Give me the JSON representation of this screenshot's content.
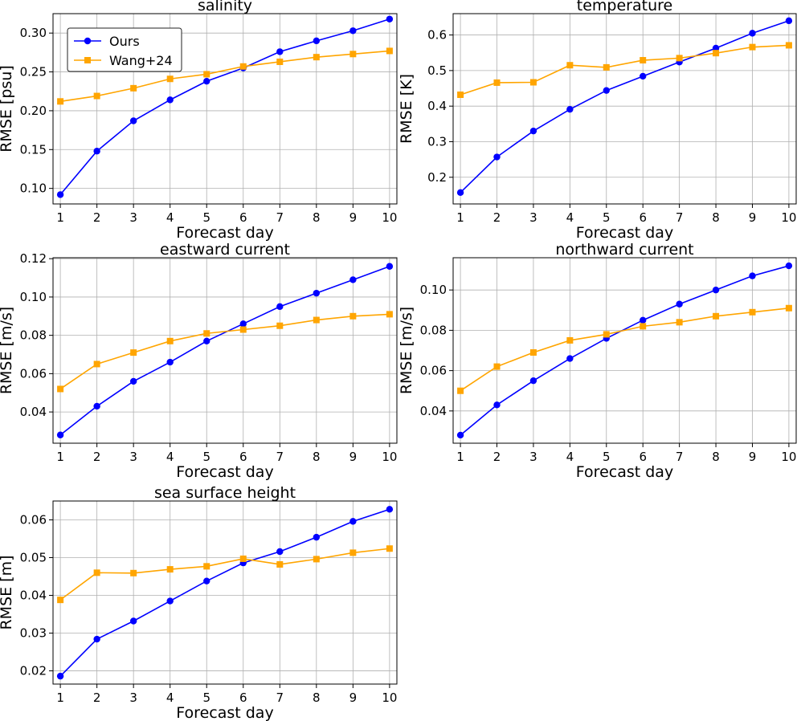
{
  "chart_data": [
    {
      "type": "line",
      "title": "salinity",
      "xlabel": "Forecast day",
      "ylabel": "RMSE [psu]",
      "x": [
        1,
        2,
        3,
        4,
        5,
        6,
        7,
        8,
        9,
        10
      ],
      "xlim": [
        0.8,
        10.2
      ],
      "ylim": [
        0.08,
        0.325
      ],
      "yticks": [
        0.1,
        0.15,
        0.2,
        0.25,
        0.3
      ],
      "ytick_labels": [
        "0.10",
        "0.15",
        "0.20",
        "0.25",
        "0.30"
      ],
      "grid": true,
      "legend": "top-left",
      "series": [
        {
          "name": "Ours",
          "color": "#0000ff",
          "marker": "circle",
          "values": [
            0.092,
            0.148,
            0.187,
            0.214,
            0.238,
            0.255,
            0.276,
            0.29,
            0.303,
            0.318
          ]
        },
        {
          "name": "Wang+24",
          "color": "#ffa500",
          "marker": "square",
          "values": [
            0.212,
            0.219,
            0.229,
            0.241,
            0.247,
            0.257,
            0.263,
            0.269,
            0.273,
            0.277
          ]
        }
      ]
    },
    {
      "type": "line",
      "title": "temperature",
      "xlabel": "Forecast day",
      "ylabel": "RMSE [K]",
      "x": [
        1,
        2,
        3,
        4,
        5,
        6,
        7,
        8,
        9,
        10
      ],
      "xlim": [
        0.8,
        10.2
      ],
      "ylim": [
        0.125,
        0.66
      ],
      "yticks": [
        0.2,
        0.3,
        0.4,
        0.5,
        0.6
      ],
      "ytick_labels": [
        "0.2",
        "0.3",
        "0.4",
        "0.5",
        "0.6"
      ],
      "grid": true,
      "series": [
        {
          "name": "Ours",
          "color": "#0000ff",
          "marker": "circle",
          "values": [
            0.157,
            0.257,
            0.33,
            0.391,
            0.444,
            0.484,
            0.524,
            0.563,
            0.605,
            0.64
          ]
        },
        {
          "name": "Wang+24",
          "color": "#ffa500",
          "marker": "square",
          "values": [
            0.432,
            0.466,
            0.467,
            0.515,
            0.509,
            0.529,
            0.535,
            0.549,
            0.566,
            0.571
          ]
        }
      ]
    },
    {
      "type": "line",
      "title": "eastward current",
      "xlabel": "Forecast day",
      "ylabel": "RMSE [m/s]",
      "x": [
        1,
        2,
        3,
        4,
        5,
        6,
        7,
        8,
        9,
        10
      ],
      "xlim": [
        0.8,
        10.2
      ],
      "ylim": [
        0.0237,
        0.1205
      ],
      "yticks": [
        0.04,
        0.06,
        0.08,
        0.1,
        0.12
      ],
      "ytick_labels": [
        "0.04",
        "0.06",
        "0.08",
        "0.10",
        "0.12"
      ],
      "grid": true,
      "series": [
        {
          "name": "Ours",
          "color": "#0000ff",
          "marker": "circle",
          "values": [
            0.028,
            0.043,
            0.056,
            0.066,
            0.077,
            0.086,
            0.095,
            0.102,
            0.109,
            0.116
          ]
        },
        {
          "name": "Wang+24",
          "color": "#ffa500",
          "marker": "square",
          "values": [
            0.052,
            0.065,
            0.071,
            0.077,
            0.081,
            0.083,
            0.085,
            0.088,
            0.09,
            0.091
          ]
        }
      ]
    },
    {
      "type": "line",
      "title": "northward current",
      "xlabel": "Forecast day",
      "ylabel": "RMSE [m/s]",
      "x": [
        1,
        2,
        3,
        4,
        5,
        6,
        7,
        8,
        9,
        10
      ],
      "xlim": [
        0.8,
        10.2
      ],
      "ylim": [
        0.024,
        0.116
      ],
      "yticks": [
        0.04,
        0.06,
        0.08,
        0.1
      ],
      "ytick_labels": [
        "0.04",
        "0.06",
        "0.08",
        "0.10"
      ],
      "grid": true,
      "series": [
        {
          "name": "Ours",
          "color": "#0000ff",
          "marker": "circle",
          "values": [
            0.028,
            0.043,
            0.055,
            0.066,
            0.076,
            0.085,
            0.093,
            0.1,
            0.107,
            0.112
          ]
        },
        {
          "name": "Wang+24",
          "color": "#ffa500",
          "marker": "square",
          "values": [
            0.05,
            0.062,
            0.069,
            0.075,
            0.078,
            0.082,
            0.084,
            0.087,
            0.089,
            0.091
          ]
        }
      ]
    },
    {
      "type": "line",
      "title": "sea surface height",
      "xlabel": "Forecast day",
      "ylabel": "RMSE [m]",
      "x": [
        1,
        2,
        3,
        4,
        5,
        6,
        7,
        8,
        9,
        10
      ],
      "xlim": [
        0.8,
        10.2
      ],
      "ylim": [
        0.0165,
        0.065
      ],
      "yticks": [
        0.02,
        0.03,
        0.04,
        0.05,
        0.06
      ],
      "ytick_labels": [
        "0.02",
        "0.03",
        "0.04",
        "0.05",
        "0.06"
      ],
      "grid": true,
      "series": [
        {
          "name": "Ours",
          "color": "#0000ff",
          "marker": "circle",
          "values": [
            0.0186,
            0.0284,
            0.0332,
            0.0385,
            0.0438,
            0.0486,
            0.0516,
            0.0554,
            0.0596,
            0.0628
          ]
        },
        {
          "name": "Wang+24",
          "color": "#ffa500",
          "marker": "square",
          "values": [
            0.0388,
            0.046,
            0.0459,
            0.0469,
            0.0477,
            0.0497,
            0.0482,
            0.0496,
            0.0513,
            0.0524
          ]
        }
      ]
    }
  ]
}
